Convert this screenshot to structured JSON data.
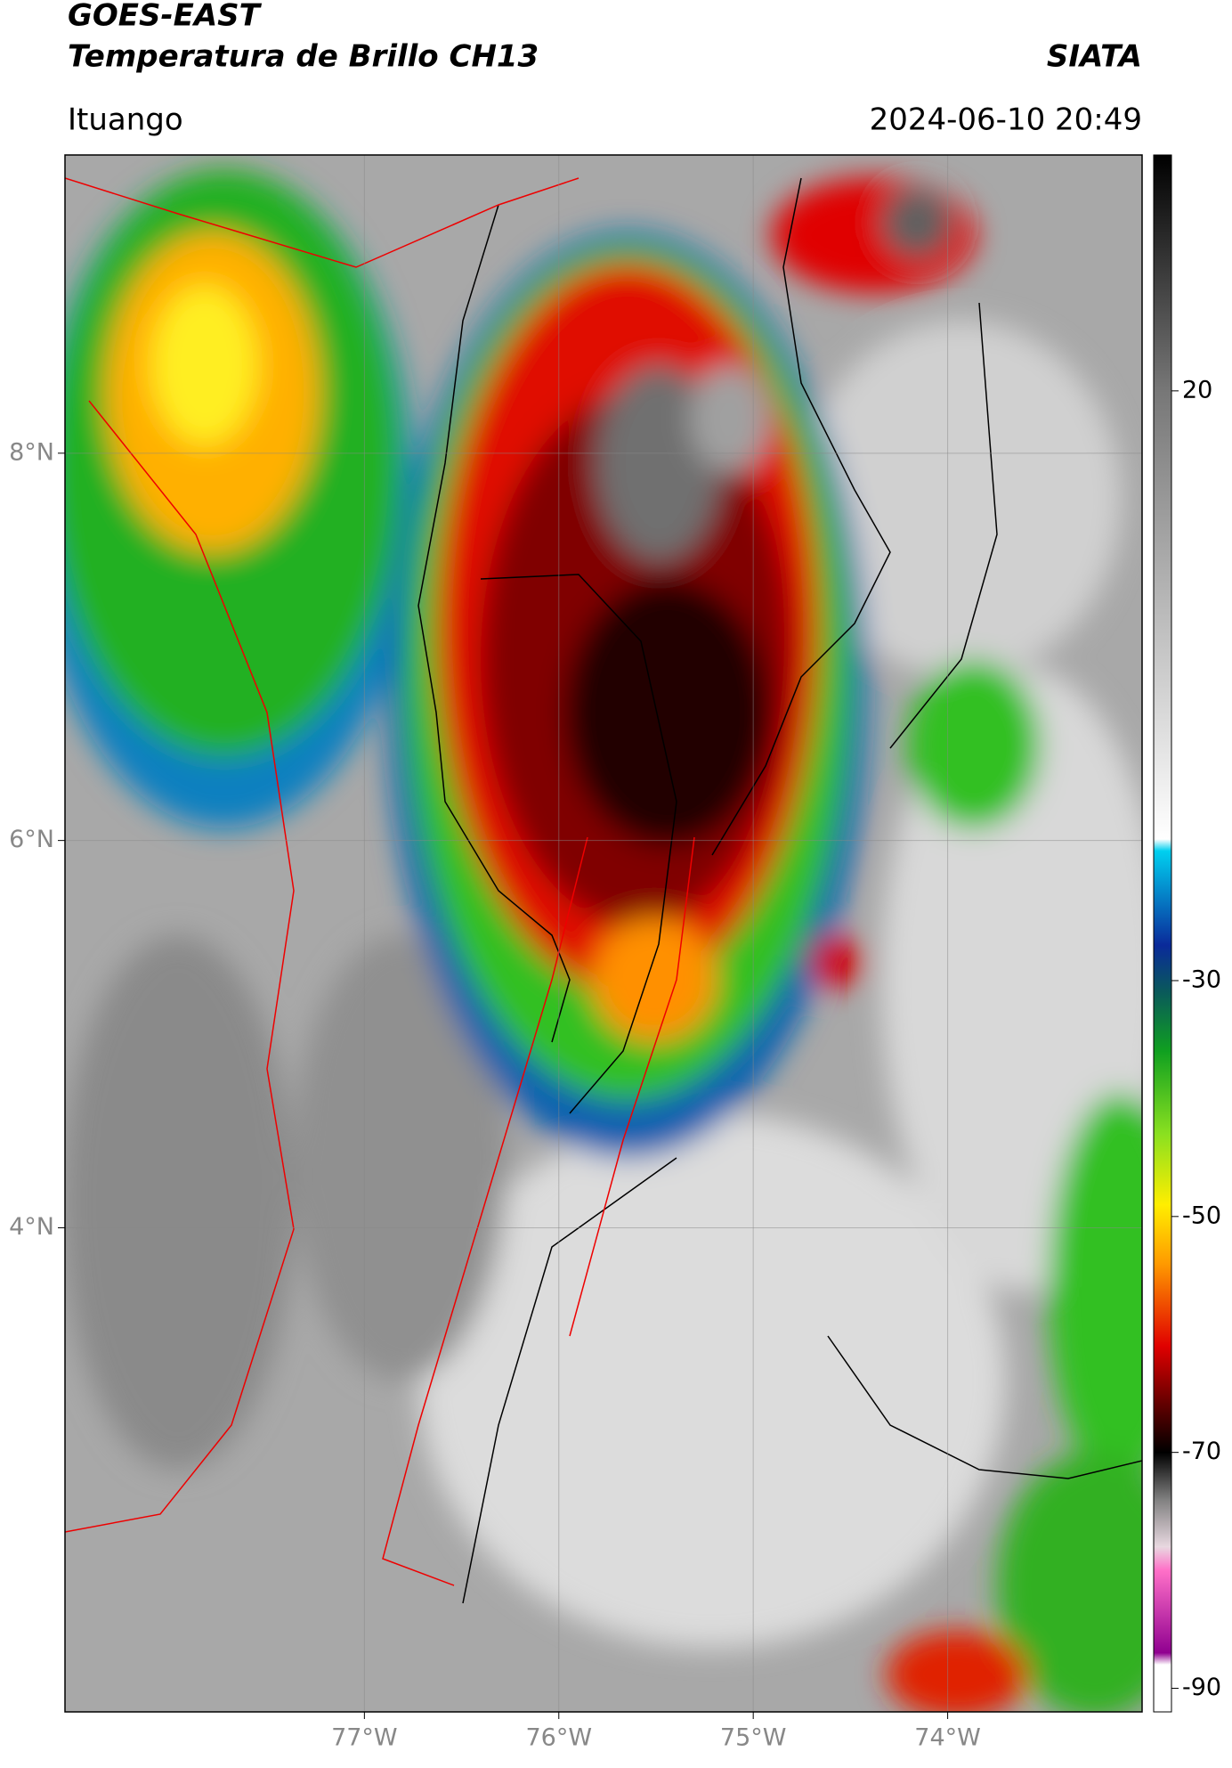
{
  "header": {
    "title": "GOES-EAST",
    "subtitle": "Temperatura de Brillo CH13",
    "agency": "SIATA",
    "location": "Ituango",
    "datetime": "2024-06-10 20:49"
  },
  "map": {
    "lonlim": [
      -78.54,
      -73.0
    ],
    "latlim": [
      1.5,
      9.54
    ],
    "grid": true,
    "lonticks": [
      {
        "value": -77,
        "label": "77°W"
      },
      {
        "value": -76,
        "label": "76°W"
      },
      {
        "value": -75,
        "label": "75°W"
      },
      {
        "value": -74,
        "label": "74°W"
      }
    ],
    "latticks": [
      {
        "value": 8,
        "label": "8°N"
      },
      {
        "value": 6,
        "label": "6°N"
      },
      {
        "value": 4,
        "label": "4°N"
      }
    ]
  },
  "colorbar": {
    "lim": [
      -92,
      40
    ],
    "ticks": [
      20,
      -30,
      -50,
      -70,
      -90
    ],
    "stops": [
      {
        "value": 40,
        "color": "#000000"
      },
      {
        "value": 20,
        "color": "#777777"
      },
      {
        "value": -18,
        "color": "#ffffff"
      },
      {
        "value": -19,
        "color": "#00d0f0"
      },
      {
        "value": -27,
        "color": "#0a2a9a"
      },
      {
        "value": -31,
        "color": "#0a5a5a"
      },
      {
        "value": -36,
        "color": "#10a020"
      },
      {
        "value": -43,
        "color": "#8ae020"
      },
      {
        "value": -49,
        "color": "#ffee00"
      },
      {
        "value": -54,
        "color": "#ff9a00"
      },
      {
        "value": -61,
        "color": "#e00000"
      },
      {
        "value": -66,
        "color": "#600000"
      },
      {
        "value": -70,
        "color": "#000000"
      },
      {
        "value": -74,
        "color": "#808080"
      },
      {
        "value": -78,
        "color": "#e8d8e0"
      },
      {
        "value": -80,
        "color": "#ff70c8"
      },
      {
        "value": -87,
        "color": "#900090"
      },
      {
        "value": -88,
        "color": "#ffffff"
      }
    ]
  }
}
